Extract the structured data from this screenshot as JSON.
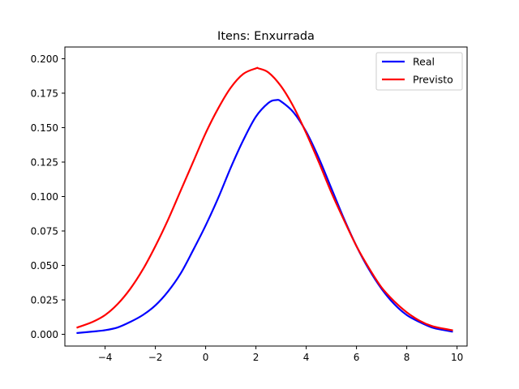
{
  "chart_data": {
    "type": "line",
    "title": "Itens: Enxurrada",
    "xlabel": "",
    "ylabel": "",
    "xlim": [
      -5.6,
      10.4
    ],
    "ylim": [
      -0.0085,
      0.2085
    ],
    "xticks": [
      -4,
      -2,
      0,
      2,
      4,
      6,
      8,
      10
    ],
    "xtick_labels": [
      "−4",
      "−2",
      "0",
      "2",
      "4",
      "6",
      "8",
      "10"
    ],
    "yticks": [
      0.0,
      0.025,
      0.05,
      0.075,
      0.1,
      0.125,
      0.15,
      0.175,
      0.2
    ],
    "ytick_labels": [
      "0.000",
      "0.025",
      "0.050",
      "0.075",
      "0.100",
      "0.125",
      "0.150",
      "0.175",
      "0.200"
    ],
    "grid": false,
    "legend_position": "top-right",
    "series": [
      {
        "name": "Real",
        "color": "#0000ff",
        "x": [
          -5.1,
          -4.5,
          -4.0,
          -3.5,
          -3.0,
          -2.5,
          -2.0,
          -1.5,
          -1.0,
          -0.5,
          0.0,
          0.5,
          1.0,
          1.5,
          2.0,
          2.5,
          2.8,
          3.0,
          3.5,
          4.0,
          4.5,
          5.0,
          5.5,
          6.0,
          6.5,
          7.0,
          7.5,
          8.0,
          8.5,
          9.0,
          9.5,
          9.8
        ],
        "y": [
          0.001,
          0.002,
          0.003,
          0.005,
          0.009,
          0.014,
          0.021,
          0.031,
          0.044,
          0.061,
          0.079,
          0.099,
          0.121,
          0.141,
          0.158,
          0.168,
          0.17,
          0.169,
          0.161,
          0.147,
          0.128,
          0.106,
          0.084,
          0.064,
          0.047,
          0.033,
          0.022,
          0.014,
          0.009,
          0.005,
          0.003,
          0.002
        ]
      },
      {
        "name": "Previsto",
        "color": "#ff0000",
        "x": [
          -5.1,
          -4.5,
          -4.0,
          -3.5,
          -3.0,
          -2.5,
          -2.0,
          -1.5,
          -1.0,
          -0.5,
          0.0,
          0.5,
          1.0,
          1.5,
          2.0,
          2.1,
          2.5,
          3.0,
          3.5,
          4.0,
          4.5,
          5.0,
          5.5,
          6.0,
          6.5,
          7.0,
          7.5,
          8.0,
          8.5,
          9.0,
          9.5,
          9.8
        ],
        "y": [
          0.005,
          0.009,
          0.014,
          0.022,
          0.033,
          0.047,
          0.064,
          0.083,
          0.104,
          0.125,
          0.146,
          0.164,
          0.179,
          0.189,
          0.193,
          0.193,
          0.19,
          0.18,
          0.165,
          0.146,
          0.125,
          0.103,
          0.083,
          0.064,
          0.048,
          0.034,
          0.024,
          0.016,
          0.01,
          0.006,
          0.004,
          0.003
        ]
      }
    ]
  }
}
